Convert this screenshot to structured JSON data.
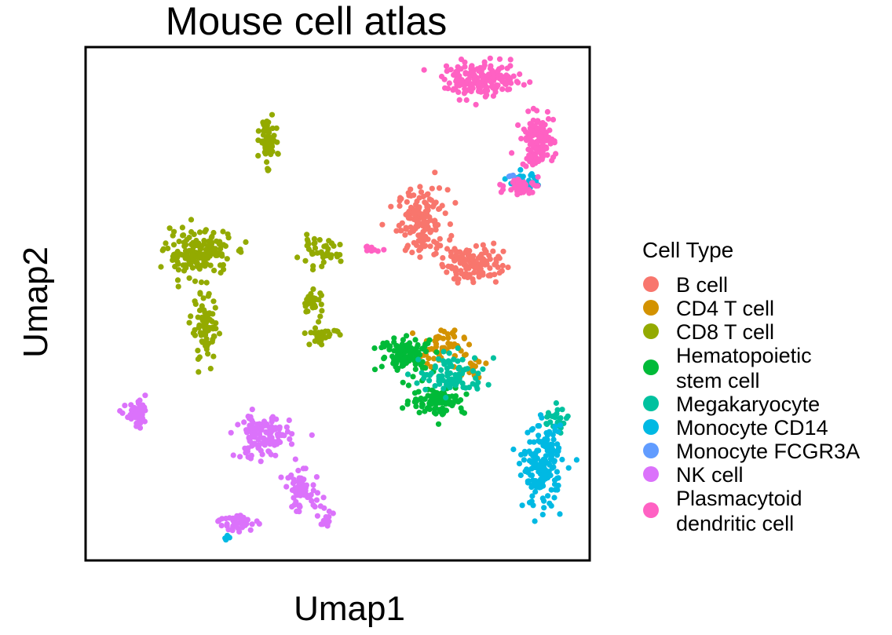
{
  "chart_data": {
    "type": "scatter",
    "title": "Mouse cell atlas",
    "xlabel": "Umap1",
    "ylabel": "Umap2",
    "xlim": [
      0,
      100
    ],
    "ylim": [
      0,
      100
    ],
    "grid": false,
    "axis_ticks": false,
    "legend": {
      "title": "Cell Type",
      "placement": "right"
    },
    "series": [
      {
        "name": "B cell",
        "label_lines": [
          "B cell"
        ],
        "color": "#F8766D",
        "clusters": [
          {
            "cx": 67,
            "cy": 66,
            "sx": 4.5,
            "sy": 6,
            "n": 150
          },
          {
            "cx": 77,
            "cy": 58,
            "sx": 5.5,
            "sy": 3.5,
            "n": 110
          }
        ]
      },
      {
        "name": "CD4 T cell",
        "label_lines": [
          "CD4 T cell"
        ],
        "color": "#D39200",
        "clusters": [
          {
            "cx": 71,
            "cy": 41.5,
            "sx": 4,
            "sy": 3,
            "n": 55
          },
          {
            "cx": 76,
            "cy": 38,
            "sx": 3,
            "sy": 2.5,
            "n": 20
          }
        ]
      },
      {
        "name": "CD8 T cell",
        "label_lines": [
          "CD8 T cell"
        ],
        "color": "#93AA00",
        "clusters": [
          {
            "cx": 36,
            "cy": 82,
            "sx": 1.4,
            "sy": 4,
            "n": 70
          },
          {
            "cx": 22,
            "cy": 60,
            "sx": 6,
            "sy": 4,
            "n": 160
          },
          {
            "cx": 23.5,
            "cy": 45,
            "sx": 2.5,
            "sy": 6,
            "n": 80
          },
          {
            "cx": 46,
            "cy": 60,
            "sx": 4,
            "sy": 2.5,
            "n": 40
          },
          {
            "cx": 45,
            "cy": 50,
            "sx": 2,
            "sy": 2.5,
            "n": 30
          },
          {
            "cx": 47,
            "cy": 44,
            "sx": 3,
            "sy": 1.5,
            "n": 30
          }
        ]
      },
      {
        "name": "Hematopoietic stem cell",
        "label_lines": [
          "Hematopoietic",
          "stem cell"
        ],
        "color": "#00BA38",
        "clusters": [
          {
            "cx": 64,
            "cy": 40,
            "sx": 5,
            "sy": 3,
            "n": 110
          },
          {
            "cx": 70,
            "cy": 31,
            "sx": 5,
            "sy": 2.5,
            "n": 90
          }
        ]
      },
      {
        "name": "Megakaryocyte",
        "label_lines": [
          "Megakaryocyte"
        ],
        "color": "#00C19F",
        "clusters": [
          {
            "cx": 73,
            "cy": 36,
            "sx": 6,
            "sy": 3.5,
            "n": 90
          },
          {
            "cx": 94,
            "cy": 27,
            "sx": 2.5,
            "sy": 3,
            "n": 30
          }
        ]
      },
      {
        "name": "Monocyte CD14",
        "label_lines": [
          "Monocyte CD14"
        ],
        "color": "#00B9E3",
        "clusters": [
          {
            "cx": 91,
            "cy": 18,
            "sx": 3.5,
            "sy": 7,
            "n": 170
          },
          {
            "cx": 87,
            "cy": 74,
            "sx": 2.5,
            "sy": 1.5,
            "n": 35
          },
          {
            "cx": 28,
            "cy": 4,
            "sx": 0.7,
            "sy": 0.7,
            "n": 6
          }
        ]
      },
      {
        "name": "Monocyte FCGR3A",
        "label_lines": [
          "Monocyte FCGR3A"
        ],
        "color": "#619CFF",
        "clusters": [
          {
            "cx": 85,
            "cy": 75,
            "sx": 1.2,
            "sy": 1,
            "n": 6
          }
        ]
      },
      {
        "name": "NK cell",
        "label_lines": [
          "NK cell"
        ],
        "color": "#DB72FB",
        "clusters": [
          {
            "cx": 10,
            "cy": 28,
            "sx": 2.2,
            "sy": 2.2,
            "n": 50
          },
          {
            "cx": 35,
            "cy": 24,
            "sx": 5,
            "sy": 4,
            "n": 130
          },
          {
            "cx": 43,
            "cy": 13,
            "sx": 3.5,
            "sy": 3.5,
            "n": 60
          },
          {
            "cx": 30,
            "cy": 7,
            "sx": 3.5,
            "sy": 1.5,
            "n": 40
          },
          {
            "cx": 48,
            "cy": 8,
            "sx": 1.2,
            "sy": 2,
            "n": 15
          }
        ]
      },
      {
        "name": "Plasmacytoid dendritic cell",
        "label_lines": [
          "Plasmacytoid",
          "dendritic cell"
        ],
        "color": "#FF61C3",
        "clusters": [
          {
            "cx": 79,
            "cy": 94,
            "sx": 7,
            "sy": 3,
            "n": 170
          },
          {
            "cx": 90,
            "cy": 82,
            "sx": 3,
            "sy": 4.5,
            "n": 120
          },
          {
            "cx": 87,
            "cy": 73,
            "sx": 3,
            "sy": 1.5,
            "n": 45
          },
          {
            "cx": 57,
            "cy": 61,
            "sx": 1.5,
            "sy": 0.6,
            "n": 10
          }
        ]
      }
    ]
  }
}
